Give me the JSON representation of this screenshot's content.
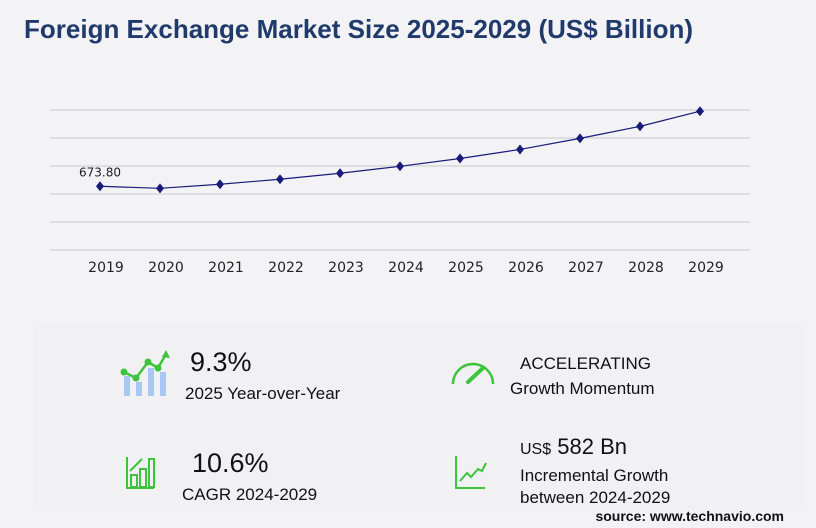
{
  "title": "Foreign Exchange Market Size 2025-2029 (US$ Billion)",
  "chart_data": {
    "type": "line",
    "title": "Foreign Exchange Market Size 2025-2029 (US$ Billion)",
    "categories": [
      "2019",
      "2020",
      "2021",
      "2022",
      "2023",
      "2024",
      "2025",
      "2026",
      "2027",
      "2028",
      "2029"
    ],
    "values": [
      673.8,
      652,
      695,
      748,
      811,
      885,
      967,
      1063,
      1180,
      1307,
      1467
    ],
    "data_labels": {
      "2019": "673.80"
    },
    "xlabel": "",
    "ylabel": "",
    "ylim": [
      0,
      1480
    ],
    "grid": true,
    "legend": "none",
    "line_color": "#1a1a7a"
  },
  "stats": {
    "yoy_value": "9.3%",
    "yoy_label": "2025 Year-over-Year",
    "momentum_value": "ACCELERATING",
    "momentum_label": "Growth Momentum",
    "cagr_value": "10.6%",
    "cagr_label": "CAGR 2024-2029",
    "inc_prefix": "US$",
    "inc_value": "582 Bn",
    "inc_label1": "Incremental Growth",
    "inc_label2": "between 2024-2029"
  },
  "source": "source: www.technavio.com",
  "colors": {
    "green": "#3cc43c",
    "blue": "#a9c8f0",
    "title": "#1f3a6b"
  }
}
